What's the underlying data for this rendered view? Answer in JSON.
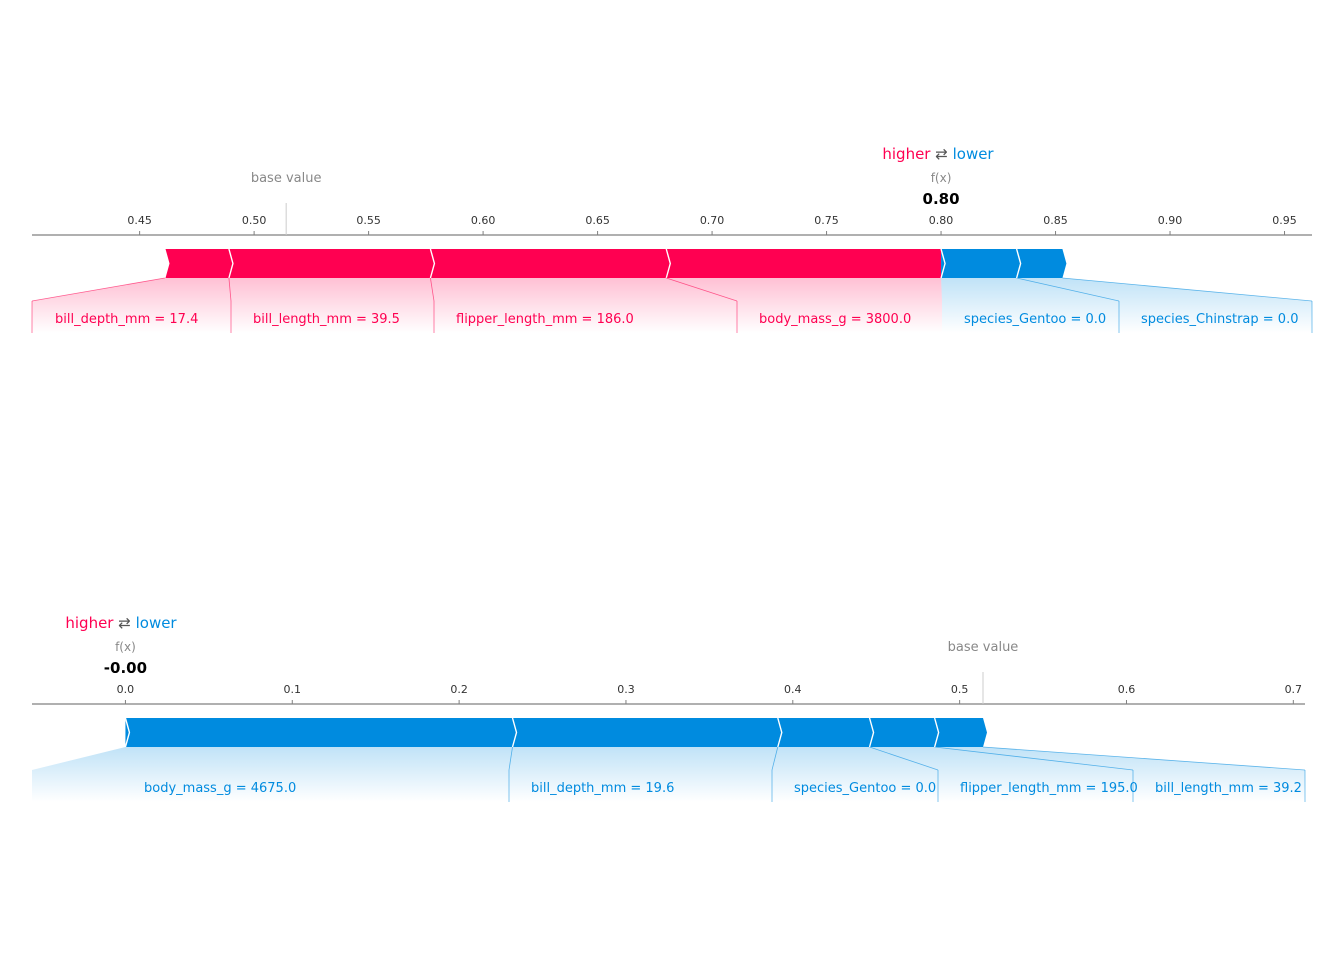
{
  "colors": {
    "higher": "#ff0051",
    "lower": "#008bdf",
    "text_muted": "#888888",
    "axis": "#808080",
    "tick_text": "#333333"
  },
  "chart_data": [
    {
      "type": "force",
      "legend": {
        "higher": "higher",
        "arrows": "⇄",
        "lower": "lower"
      },
      "fx_label": "f(x)",
      "fx_value_text": "0.80",
      "fx": 0.8,
      "base_label": "base value",
      "base_value": 0.514,
      "xlim": [
        0.403,
        0.962
      ],
      "ticks": [
        "0.45",
        "0.50",
        "0.55",
        "0.60",
        "0.65",
        "0.70",
        "0.75",
        "0.80",
        "0.85",
        "0.90",
        "0.95"
      ],
      "tick_values": [
        0.45,
        0.5,
        0.55,
        0.6,
        0.65,
        0.7,
        0.75,
        0.8,
        0.85,
        0.9,
        0.95
      ],
      "higher_features": [
        {
          "label": "bill_depth_mm = 17.4",
          "start": 0.461,
          "end": 0.489
        },
        {
          "label": "bill_length_mm = 39.5",
          "start": 0.489,
          "end": 0.577
        },
        {
          "label": "flipper_length_mm = 186.0",
          "start": 0.577,
          "end": 0.68
        },
        {
          "label": "body_mass_g = 3800.0",
          "start": 0.68,
          "end": 0.8
        }
      ],
      "lower_features": [
        {
          "label": "species_Gentoo = 0.0",
          "start": 0.8,
          "end": 0.833
        },
        {
          "label": "species_Chinstrap = 0.0",
          "start": 0.833,
          "end": 0.853
        }
      ]
    },
    {
      "type": "force",
      "legend": {
        "higher": "higher",
        "arrows": "⇄",
        "lower": "lower"
      },
      "fx_label": "f(x)",
      "fx_value_text": "-0.00",
      "fx": 0.0,
      "base_label": "base value",
      "base_value": 0.514,
      "xlim": [
        -0.056,
        0.707
      ],
      "ticks": [
        "0.0",
        "0.1",
        "0.2",
        "0.3",
        "0.4",
        "0.5",
        "0.6",
        "0.7"
      ],
      "tick_values": [
        0.0,
        0.1,
        0.2,
        0.3,
        0.4,
        0.5,
        0.6,
        0.7
      ],
      "higher_features": [],
      "lower_features": [
        {
          "label": "body_mass_g = 4675.0",
          "start": 0.0,
          "end": 0.232
        },
        {
          "label": "bill_depth_mm = 19.6",
          "start": 0.232,
          "end": 0.391
        },
        {
          "label": "species_Gentoo = 0.0",
          "start": 0.391,
          "end": 0.446
        },
        {
          "label": "flipper_length_mm = 195.0",
          "start": 0.446,
          "end": 0.485
        },
        {
          "label": "bill_length_mm = 39.2",
          "start": 0.485,
          "end": 0.514
        }
      ]
    }
  ]
}
